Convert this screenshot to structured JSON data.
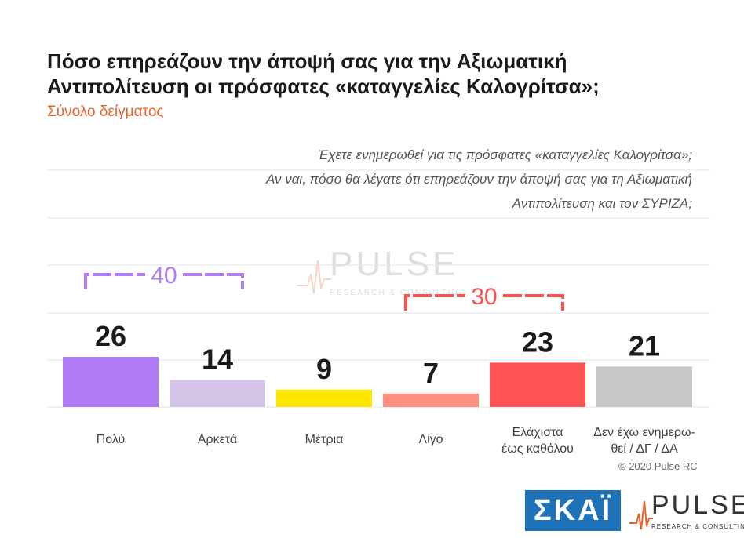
{
  "header": {
    "title_line1": "Πόσο επηρεάζουν την άποψή σας για την Αξιωματική",
    "title_line2": "Αντιπολίτευση οι πρόσφατες «καταγγελίες Καλογρίτσα»;",
    "subtitle": "Σύνολο δείγματος"
  },
  "question": {
    "line1": "Έχετε ενημερωθεί για τις πρόσφατες «καταγγελίες Καλογρίτσα»;",
    "line2": "Αν ναι, πόσο θα λέγατε ότι επηρεάζουν την άποψή σας για τη Αξιωματική",
    "line3": "Αντιπολίτευση και τον ΣΥΡΙΖΑ;"
  },
  "chart_data": {
    "type": "bar",
    "categories": [
      "Πολύ",
      "Αρκετά",
      "Μέτρια",
      "Λίγο",
      "Ελάχιστα\nέως καθόλου",
      "Δεν έχω ενημερω-\nθεί / ΔΓ / ΔΑ"
    ],
    "values": [
      26,
      14,
      9,
      7,
      23,
      21
    ],
    "colors": [
      "#b07cf3",
      "#d4c5e8",
      "#ffe600",
      "#ff8f80",
      "#ff5252",
      "#c8c8c8"
    ],
    "ylim": [
      0,
      26
    ],
    "grid": true,
    "groups": [
      {
        "label": "40",
        "categories": [
          0,
          1
        ],
        "color": "#b07cf3"
      },
      {
        "label": "30",
        "categories": [
          3,
          4
        ],
        "color": "#ff4f4f"
      }
    ]
  },
  "footer": {
    "copyright": "© 2020 Pulse RC",
    "skai_logo": "ΣΚΑΪ",
    "pulse_logo": "PULSE",
    "pulse_tagline": "RESEARCH & CONSULTING"
  },
  "watermark": {
    "word": "PULSE",
    "tagline": "RESEARCH & CONSULTING"
  }
}
